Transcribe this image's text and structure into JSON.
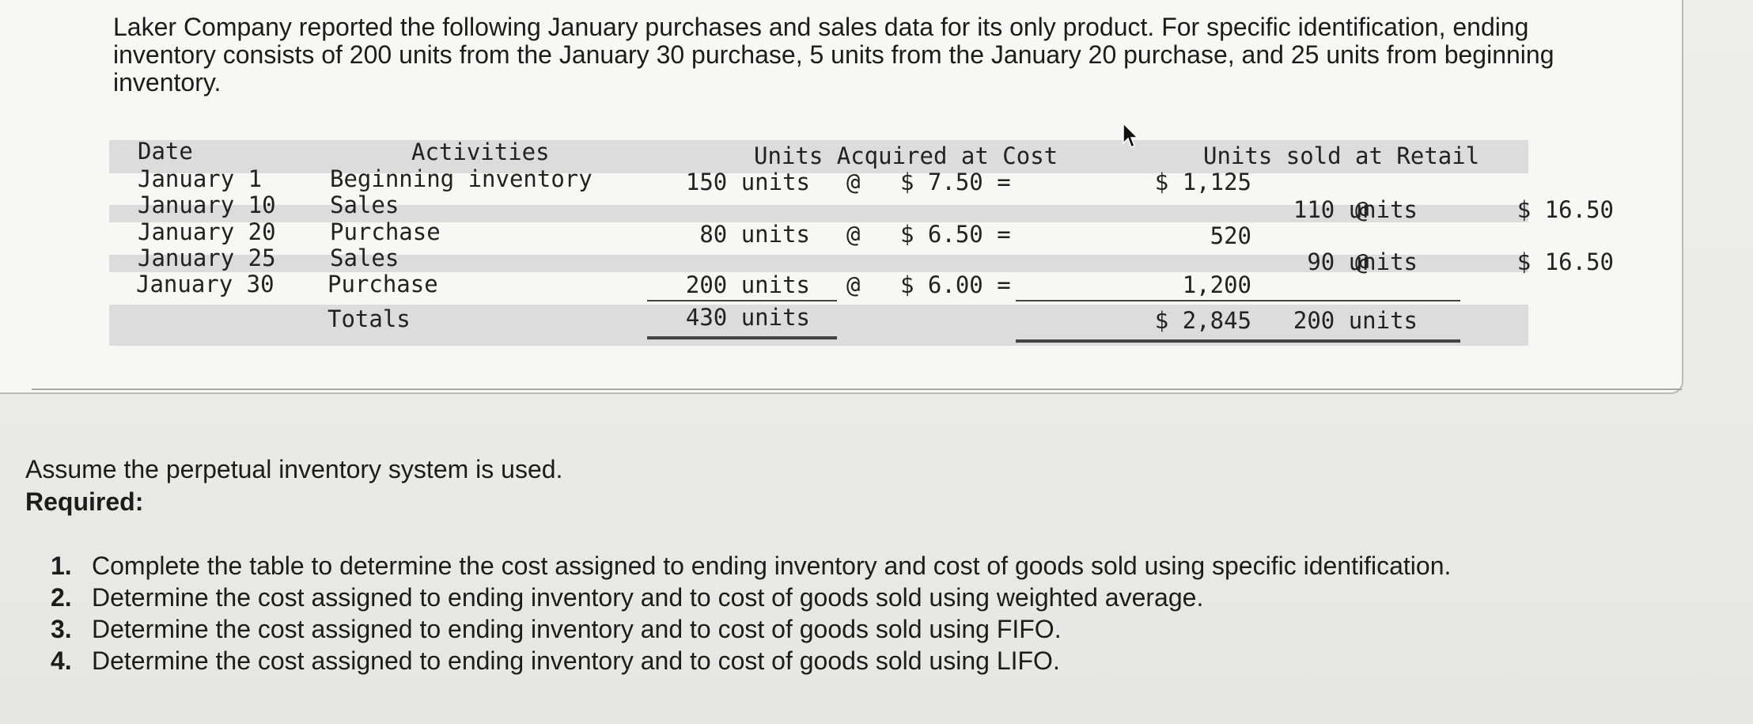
{
  "intro_text": "Laker Company reported the following January purchases and sales data for its only product. For specific identification, ending inventory consists of 200 units from the January 30 purchase, 5 units from the January 20 purchase, and 25 units from beginning inventory.",
  "table": {
    "headers": {
      "date": "Date",
      "activities": "Activities",
      "acquired": "Units Acquired at Cost",
      "sold": "Units sold at Retail"
    },
    "rows": [
      {
        "date": "January 1",
        "activity": "Beginning inventory",
        "acq_units": "150 units",
        "acq_at": "@",
        "acq_cost": "$ 7.50 =",
        "acq_total": "$ 1,125",
        "sold_units": "",
        "sold_at": "",
        "sold_price": ""
      },
      {
        "date": "January 10",
        "activity": "Sales",
        "acq_units": "",
        "acq_at": "",
        "acq_cost": "",
        "acq_total": "",
        "sold_units": "110 units",
        "sold_at": "@",
        "sold_price": "$ 16.50"
      },
      {
        "date": "January 20",
        "activity": "Purchase",
        "acq_units": "80 units",
        "acq_at": "@",
        "acq_cost": "$ 6.50 =",
        "acq_total": "520",
        "sold_units": "",
        "sold_at": "",
        "sold_price": ""
      },
      {
        "date": "January 25",
        "activity": "Sales",
        "acq_units": "",
        "acq_at": "",
        "acq_cost": "",
        "acq_total": "",
        "sold_units": "90 units",
        "sold_at": "@",
        "sold_price": "$ 16.50"
      },
      {
        "date": "January 30",
        "activity": "Purchase",
        "acq_units": "200 units",
        "acq_at": "@",
        "acq_cost": "$ 6.00 =",
        "acq_total": "1,200",
        "sold_units": "",
        "sold_at": "",
        "sold_price": ""
      }
    ],
    "totals": {
      "label": "Totals",
      "acq_units": "430 units",
      "acq_total": "$ 2,845",
      "sold_units": "200 units"
    }
  },
  "assume_text": "Assume the perpetual inventory system is used.",
  "required_label": "Required:",
  "requirements": [
    {
      "num": "1.",
      "text": "Complete the table to determine the cost assigned to ending inventory and cost of goods sold using specific identification."
    },
    {
      "num": "2.",
      "text": "Determine the cost assigned to ending inventory and to cost of goods sold using weighted average."
    },
    {
      "num": "3.",
      "text": "Determine the cost assigned to ending inventory and to cost of goods sold using FIFO."
    },
    {
      "num": "4.",
      "text": "Determine the cost assigned to ending inventory and to cost of goods sold using LIFO."
    }
  ],
  "icons": {
    "cursor": "mouse-pointer-icon"
  }
}
